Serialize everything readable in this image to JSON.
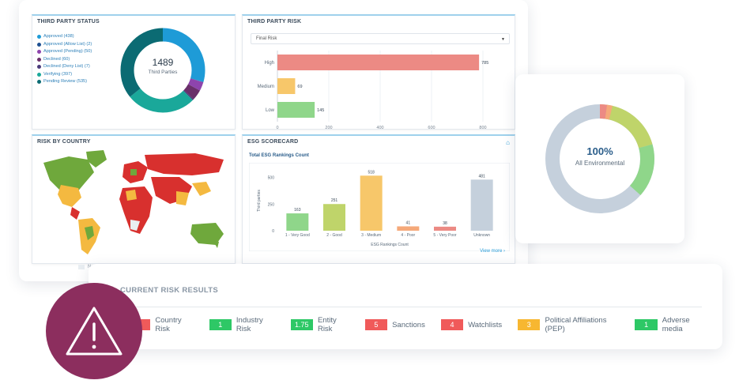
{
  "third_party_status": {
    "title": "THIRD PARTY STATUS",
    "legend": [
      {
        "label": "Approved (438)",
        "color": "#1e9bd7"
      },
      {
        "label": "Approved (Allow List) (2)",
        "color": "#1d4f91"
      },
      {
        "label": "Approved (Pending) (50)",
        "color": "#8e44ad"
      },
      {
        "label": "Declined (60)",
        "color": "#6a2f6a"
      },
      {
        "label": "Declined (Deny List) (7)",
        "color": "#4a3a7a"
      },
      {
        "label": "Verifying (397)",
        "color": "#1aa89a"
      },
      {
        "label": "Pending Review (535)",
        "color": "#0b6b73"
      }
    ],
    "total": "1489",
    "total_label": "Third Parties"
  },
  "third_party_risk": {
    "title": "THIRD PARTY RISK",
    "select_value": "Final Risk",
    "chart_data": {
      "type": "bar",
      "orientation": "horizontal",
      "categories": [
        "High",
        "Medium",
        "Low"
      ],
      "values": [
        785,
        69,
        145
      ],
      "colors": [
        "#ec8a84",
        "#f7c76a",
        "#8fd68a"
      ],
      "xlim": [
        0,
        800
      ],
      "xticks": [
        "0",
        "200",
        "400",
        "600",
        "800"
      ]
    }
  },
  "risk_by_country": {
    "title": "RISK BY COUNTRY",
    "legend_none": "None"
  },
  "esg_scorecard": {
    "title": "ESG SCORECARD",
    "subtitle": "Total ESG Rankings Count",
    "view_more": "View more",
    "chart_data": {
      "type": "bar",
      "categories": [
        "1 - Very Good",
        "2 - Good",
        "3 - Medium",
        "4 - Poor",
        "5 - Very Poor",
        "Unknown"
      ],
      "values": [
        163,
        251,
        518,
        41,
        38,
        481
      ],
      "colors": [
        "#8fd68a",
        "#bfd46a",
        "#f7c76a",
        "#f5a97a",
        "#ec8a84",
        "#c5d0dc"
      ],
      "ylim": [
        0,
        500
      ],
      "yticks": [
        "0",
        "250",
        "500"
      ],
      "xlabel": "ESG Rankings Count",
      "ylabel": "Third parties"
    }
  },
  "environmental": {
    "percent": "100%",
    "label": "All Environmental"
  },
  "current_risk": {
    "title": "CURRENT RISK RESULTS",
    "items": [
      {
        "value": "",
        "label": "Country Risk",
        "color": "#f05a5a"
      },
      {
        "value": "1",
        "label": "Industry Risk",
        "color": "#2ec866"
      },
      {
        "value": "1.75",
        "label": "Entity Risk",
        "color": "#2ec866"
      },
      {
        "value": "5",
        "label": "Sanctions",
        "color": "#f05a5a"
      },
      {
        "value": "4",
        "label": "Watchlists",
        "color": "#f05a5a"
      },
      {
        "value": "3",
        "label": "Political Affiliations (PEP)",
        "color": "#f7b731"
      },
      {
        "value": "1",
        "label": "Adverse media",
        "color": "#2ec866"
      }
    ]
  }
}
